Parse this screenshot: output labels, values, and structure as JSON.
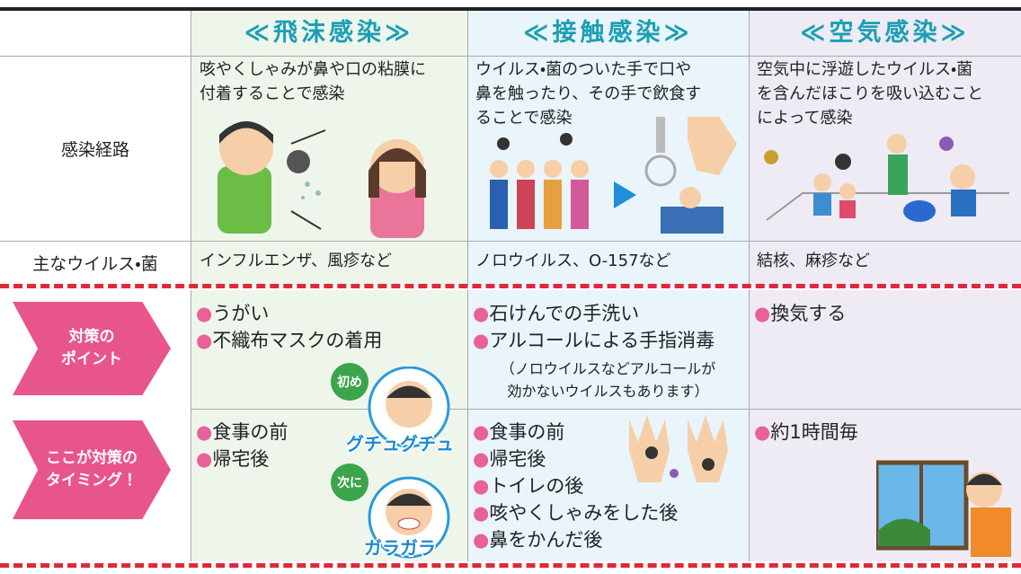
{
  "header": {
    "columns": [
      "≪飛沫感染≫",
      "≪接触感染≫",
      "≪空気感染≫"
    ]
  },
  "rows": [
    {
      "label": "感染経路",
      "cells": [
        [
          "咳やくしゃみが鼻や口の粘膜に",
          "付着することで感染"
        ],
        [
          "ウイルス・菌のついた手で口や",
          "鼻を触ったり、その手で飲食す",
          "ることで感染"
        ],
        [
          "空気中に浮遊したウイルス・菌",
          "を含んだほこりを吸い込むこと",
          "によって感染"
        ]
      ]
    },
    {
      "label": "主なウイルス・菌",
      "cells": [
        "インフルエンザ、風疹など",
        "ノロウイルス、O-157など",
        "結核、麻疹など"
      ]
    }
  ],
  "measures": [
    {
      "label": [
        "対策の",
        "ポイント"
      ],
      "cells": [
        [
          "うがい",
          "不織布マスクの着用"
        ],
        [
          "石けんでの手洗い",
          "アルコールによる手指消毒"
        ],
        [
          "換気する"
        ]
      ],
      "note": [
        "（ノロウイルスなどアルコールが",
        "効かないウイルスもあります）"
      ]
    },
    {
      "label": [
        "ここが対策の",
        "タイミング！"
      ],
      "cells": [
        [
          "食事の前",
          "帰宅後"
        ],
        [
          "食事の前",
          "帰宅後",
          "トイレの後",
          "咳やくしゃみをした後",
          "鼻をかんだ後"
        ],
        [
          "約1時間毎"
        ]
      ]
    }
  ],
  "gargle": {
    "first": "初め",
    "first_sound": "グチュグチュ",
    "next": "次に",
    "next_sound": "ガラガラ"
  }
}
